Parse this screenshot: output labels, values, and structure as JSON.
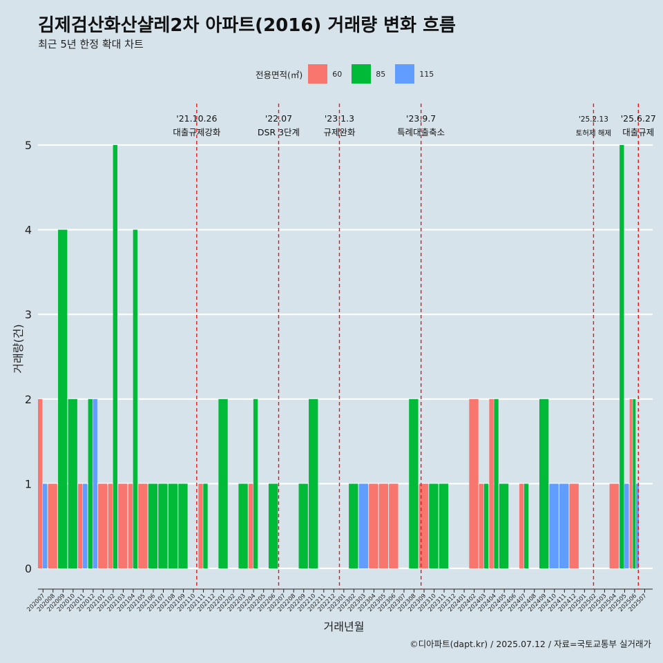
{
  "chart_data": {
    "type": "bar",
    "title": "김제검산화산샬레2차 아파트(2016) 거래량 변화 흐름",
    "subtitle": "최근 5년 한정 확대 차트",
    "xlabel": "거래년월",
    "ylabel": "거래량(건)",
    "ylim": [
      0,
      5
    ],
    "yticks": [
      0,
      1,
      2,
      3,
      4,
      5
    ],
    "legend": {
      "title": "전용면적(㎡)",
      "position": "top"
    },
    "caption": "©디아파트(dapt.kr) / 2025.07.12 / 자료=국토교통부 실거래가",
    "categories": [
      "202007",
      "202008",
      "202009",
      "202010",
      "202011",
      "202012",
      "202101",
      "202102",
      "202103",
      "202104",
      "202105",
      "202106",
      "202107",
      "202108",
      "202109",
      "202110",
      "202111",
      "202112",
      "202201",
      "202202",
      "202203",
      "202204",
      "202205",
      "202206",
      "202207",
      "202208",
      "202209",
      "202210",
      "202211",
      "202212",
      "202301",
      "202302",
      "202303",
      "202304",
      "202305",
      "202306",
      "202307",
      "202308",
      "202309",
      "202310",
      "202311",
      "202312",
      "202401",
      "202402",
      "202403",
      "202404",
      "202405",
      "202406",
      "202407",
      "202408",
      "202409",
      "202410",
      "202411",
      "202412",
      "202501",
      "202502",
      "202503",
      "202504",
      "202505",
      "202506",
      "202507"
    ],
    "series": [
      {
        "name": "60",
        "color": "#f8766d",
        "values": [
          2,
          1,
          0,
          0,
          1,
          0,
          1,
          1,
          1,
          1,
          1,
          0,
          0,
          0,
          0,
          0,
          1,
          0,
          0,
          0,
          0,
          1,
          0,
          0,
          0,
          0,
          0,
          0,
          0,
          0,
          0,
          0,
          0,
          1,
          1,
          1,
          0,
          0,
          1,
          0,
          0,
          0,
          0,
          2,
          1,
          2,
          0,
          0,
          1,
          0,
          0,
          0,
          0,
          1,
          0,
          0,
          0,
          1,
          0,
          2,
          0
        ]
      },
      {
        "name": "85",
        "color": "#00ba38",
        "values": [
          0,
          0,
          4,
          2,
          0,
          2,
          0,
          5,
          0,
          4,
          0,
          1,
          1,
          1,
          1,
          0,
          1,
          0,
          2,
          0,
          1,
          2,
          0,
          1,
          0,
          0,
          1,
          2,
          0,
          0,
          0,
          1,
          0,
          0,
          0,
          0,
          0,
          2,
          0,
          1,
          1,
          0,
          0,
          0,
          1,
          2,
          1,
          0,
          1,
          0,
          2,
          0,
          0,
          0,
          0,
          0,
          0,
          0,
          5,
          2,
          0
        ]
      },
      {
        "name": "115",
        "color": "#619cff",
        "values": [
          1,
          0,
          0,
          0,
          1,
          2,
          0,
          0,
          0,
          0,
          0,
          0,
          0,
          0,
          0,
          0,
          0,
          0,
          0,
          0,
          0,
          0,
          0,
          0,
          0,
          0,
          0,
          0,
          0,
          0,
          0,
          0,
          1,
          0,
          0,
          0,
          0,
          0,
          0,
          0,
          0,
          0,
          0,
          0,
          0,
          0,
          0,
          0,
          0,
          0,
          0,
          1,
          1,
          0,
          0,
          0,
          0,
          0,
          1,
          1,
          0
        ]
      }
    ],
    "events": [
      {
        "date": "'21.10.26",
        "label": "대출규제강화",
        "after": "202110",
        "frac": 0.83
      },
      {
        "date": "'22.07",
        "label": "DSR 3단계",
        "after": "202207",
        "frac": 0.0
      },
      {
        "date": "'23.1.3",
        "label": "규제완화",
        "after": "202301",
        "frac": 0.06
      },
      {
        "date": "'23.9.7",
        "label": "특례대출축소",
        "after": "202309",
        "frac": 0.2
      },
      {
        "date": "'25.2.13",
        "label": "토허제 해제",
        "after": "202502",
        "frac": 0.4
      },
      {
        "date": "'25.6.27",
        "label": "대출규제",
        "after": "202506",
        "frac": 0.87
      }
    ],
    "event_color": "#ee1111"
  }
}
